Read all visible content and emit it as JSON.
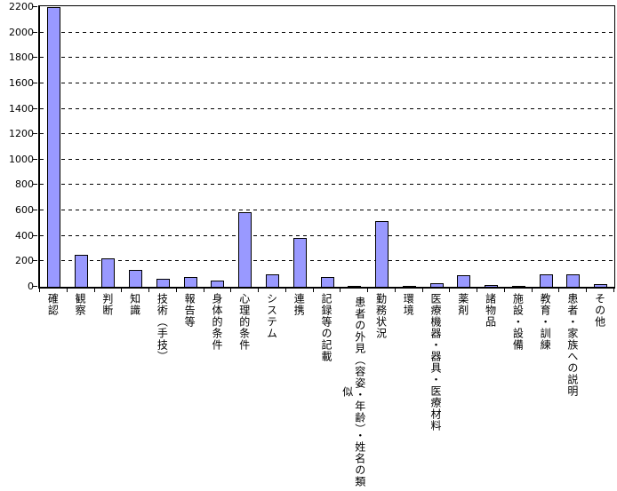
{
  "chart_data": {
    "type": "bar",
    "title": "",
    "xlabel": "",
    "ylabel": "",
    "categories": [
      "確認",
      "観察",
      "判断",
      "知識",
      "技術（手技）",
      "報告等",
      "身体的条件",
      "心理的条件",
      "システム",
      "連携",
      "記録等の記載",
      "患者の外見（容姿・年齢）・姓名の類似",
      "勤務状況",
      "環境",
      "医療機器・器具・医療材料",
      "薬剤",
      "諸物品",
      "施設・設備",
      "教育・訓練",
      "患者・家族への説明",
      "その他"
    ],
    "values": [
      2200,
      250,
      220,
      130,
      65,
      75,
      50,
      590,
      100,
      385,
      75,
      10,
      520,
      10,
      25,
      90,
      15,
      3,
      95,
      95,
      20
    ],
    "ylim": [
      0,
      2200
    ],
    "ytick_interval": 200,
    "ytick_labels": [
      "0",
      "200",
      "400",
      "600",
      "800",
      "1000",
      "1200",
      "1400",
      "1600",
      "1800",
      "2000",
      "2200"
    ],
    "grid": "horizontal-dashed",
    "legend": "none",
    "colors": {
      "bar_fill": "#9999ff",
      "bar_border": "#000000",
      "gridline": "#000000",
      "axis": "#000000",
      "background": "#ffffff",
      "text": "#000000"
    }
  }
}
